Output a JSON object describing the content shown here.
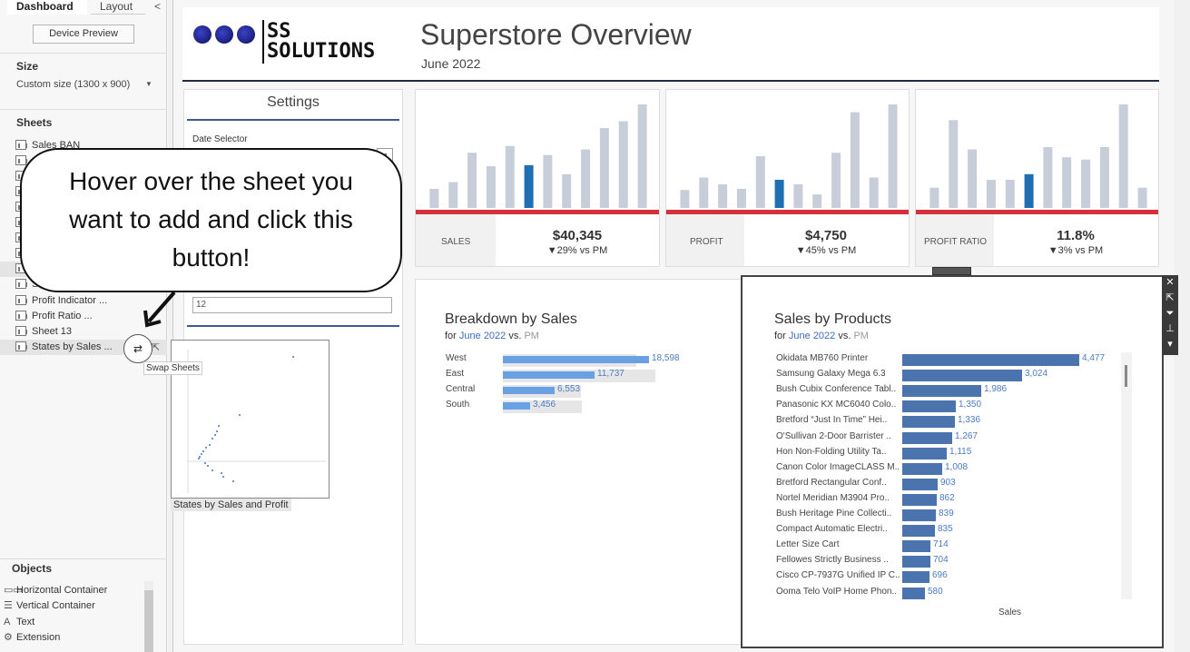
{
  "left_pane": {
    "tabs": [
      {
        "label": "Dashboard"
      },
      {
        "label": "Layout"
      }
    ],
    "collapse_glyph": "<",
    "device_preview": "Device Preview",
    "size": {
      "heading": "Size",
      "value": "Custom size (1300 x 900)"
    },
    "sheets": {
      "heading": "Sheets",
      "items": [
        {
          "label": "Sales BAN"
        },
        {
          "label": "Profit Indicator ..."
        },
        {
          "label": "Profit Ratio ..."
        },
        {
          "label": "Sheet 13"
        },
        {
          "label": "States by Sales ..."
        }
      ],
      "partial_label": "Sale"
    },
    "tooltip": "Swap Sheets",
    "objects": {
      "heading": "Objects",
      "items": [
        {
          "icon": "horizontal-container-icon",
          "glyph": "▭▭",
          "label": "Horizontal Container"
        },
        {
          "icon": "vertical-container-icon",
          "glyph": "☰",
          "label": "Vertical Container"
        },
        {
          "icon": "text-icon",
          "glyph": "A",
          "label": "Text"
        },
        {
          "icon": "extension-icon",
          "glyph": "⚙",
          "label": "Extension"
        }
      ]
    }
  },
  "header": {
    "logo_line1": "SS",
    "logo_line2": "SOLUTIONS",
    "title": "Superstore Overview",
    "subtitle": "June 2022"
  },
  "settings": {
    "heading": "Settings",
    "date_selector_label": "Date Selector",
    "number_input": "12",
    "preview_caption": "States by Sales and Profit"
  },
  "kpis": [
    {
      "label": "SALES",
      "value": "$40,345",
      "delta": "▼29% vs PM",
      "bars": [
        0.17,
        0.23,
        0.49,
        0.37,
        0.55,
        0.38,
        0.47,
        0.3,
        0.52,
        0.71,
        0.77,
        0.92
      ]
    },
    {
      "label": "PROFIT",
      "value": "$4,750",
      "delta": "▼45% vs PM",
      "bars": [
        0.16,
        0.27,
        0.21,
        0.17,
        0.46,
        0.25,
        0.21,
        0.12,
        0.49,
        0.85,
        0.27,
        0.92
      ]
    },
    {
      "label": "PROFIT RATIO",
      "value": "11.8%",
      "delta": "▼3% vs PM",
      "bars": [
        0.18,
        0.78,
        0.52,
        0.25,
        0.25,
        0.3,
        0.54,
        0.45,
        0.43,
        0.54,
        0.92,
        0.18
      ]
    }
  ],
  "breakdown": {
    "title": "Breakdown by Sales",
    "sub_prefix": "for ",
    "sub_month": "June 2022",
    "sub_mid": " vs. ",
    "sub_pm": "PM",
    "rows": [
      {
        "label": "West",
        "value": "18,598",
        "cur": 18598,
        "prev": 17000
      },
      {
        "label": "East",
        "value": "11,737",
        "cur": 11737,
        "prev": 19500
      },
      {
        "label": "Central",
        "value": "6,553",
        "cur": 6553,
        "prev": 10000
      },
      {
        "label": "South",
        "value": "3,456",
        "cur": 3456,
        "prev": 10100
      }
    ]
  },
  "popup": {
    "title": "Sales by Products",
    "sub_prefix": "for ",
    "sub_month": "June 2022",
    "sub_mid": " vs. ",
    "sub_pm": "PM",
    "x_axis_label": "Sales",
    "tools": [
      "✕",
      "⇱",
      "⏷",
      "⊥",
      "▾"
    ],
    "rows": [
      {
        "label": "Okidata MB760 Printer",
        "value": "4,477",
        "num": 4477
      },
      {
        "label": "Samsung Galaxy Mega 6.3",
        "value": "3,024",
        "num": 3024
      },
      {
        "label": "Bush Cubix Conference Tabl..",
        "value": "1,986",
        "num": 1986
      },
      {
        "label": "Panasonic KX MC6040 Colo..",
        "value": "1,350",
        "num": 1350
      },
      {
        "label": "Bretford “Just In Time” Hei..",
        "value": "1,336",
        "num": 1336
      },
      {
        "label": "O'Sullivan 2-Door Barrister ..",
        "value": "1,267",
        "num": 1267
      },
      {
        "label": "Hon Non-Folding Utility Ta..",
        "value": "1,115",
        "num": 1115
      },
      {
        "label": "Canon Color ImageCLASS M..",
        "value": "1,008",
        "num": 1008
      },
      {
        "label": "Bretford Rectangular Conf..",
        "value": "903",
        "num": 903
      },
      {
        "label": "Nortel Meridian M3904 Pro..",
        "value": "862",
        "num": 862
      },
      {
        "label": "Bush Heritage Pine Collecti..",
        "value": "839",
        "num": 839
      },
      {
        "label": "Compact Automatic Electri..",
        "value": "835",
        "num": 835
      },
      {
        "label": "Letter Size Cart",
        "value": "714",
        "num": 714
      },
      {
        "label": "Fellowes Strictly Business ..",
        "value": "704",
        "num": 704
      },
      {
        "label": "Cisco CP-7937G Unified IP C..",
        "value": "696",
        "num": 696
      },
      {
        "label": "Ooma Telo VoIP Home Phon..",
        "value": "580",
        "num": 580
      }
    ]
  },
  "callout": {
    "line1": "Hover over the sheet you",
    "line2": "want to add and click this",
    "line3": "button!"
  },
  "colors": {
    "accent_bar": "#1f6fb2",
    "bar_gray": "#c7ced9",
    "kpi_red": "#d4313d",
    "popup_bar": "#4b74ae",
    "breakdown_bar": "#6aa1e4"
  }
}
